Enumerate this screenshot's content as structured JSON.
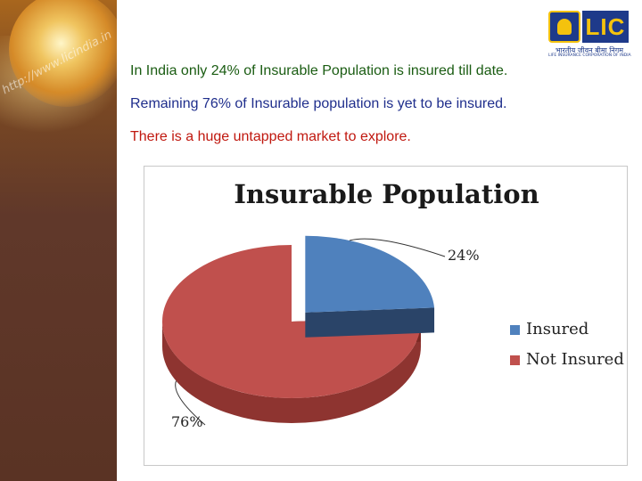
{
  "slide": {
    "sidebar_url": "http://www.licindia.in",
    "logo": {
      "mark_text": "LIC",
      "hindi_text": "भारतीय जीवन बीमा निगम",
      "english_text": "LIFE INSURANCE CORPORATION OF INDIA"
    },
    "lines": [
      "In India only 24% of Insurable Population is insured till date.",
      "Remaining 76% of Insurable population is yet to be insured.",
      "There is a huge untapped market to explore."
    ],
    "colors": {
      "line1": "#1a5c12",
      "line2": "#1f2e8c",
      "line3": "#c0180f"
    }
  },
  "chart_data": {
    "type": "pie",
    "style": "3d-exploded",
    "title": "Insurable Population",
    "categories": [
      "Insured",
      "Not Insured"
    ],
    "values": [
      24,
      76
    ],
    "value_labels": [
      "24%",
      "76%"
    ],
    "colors": [
      "#4f81bd",
      "#c0504d"
    ],
    "legend_position": "right"
  }
}
